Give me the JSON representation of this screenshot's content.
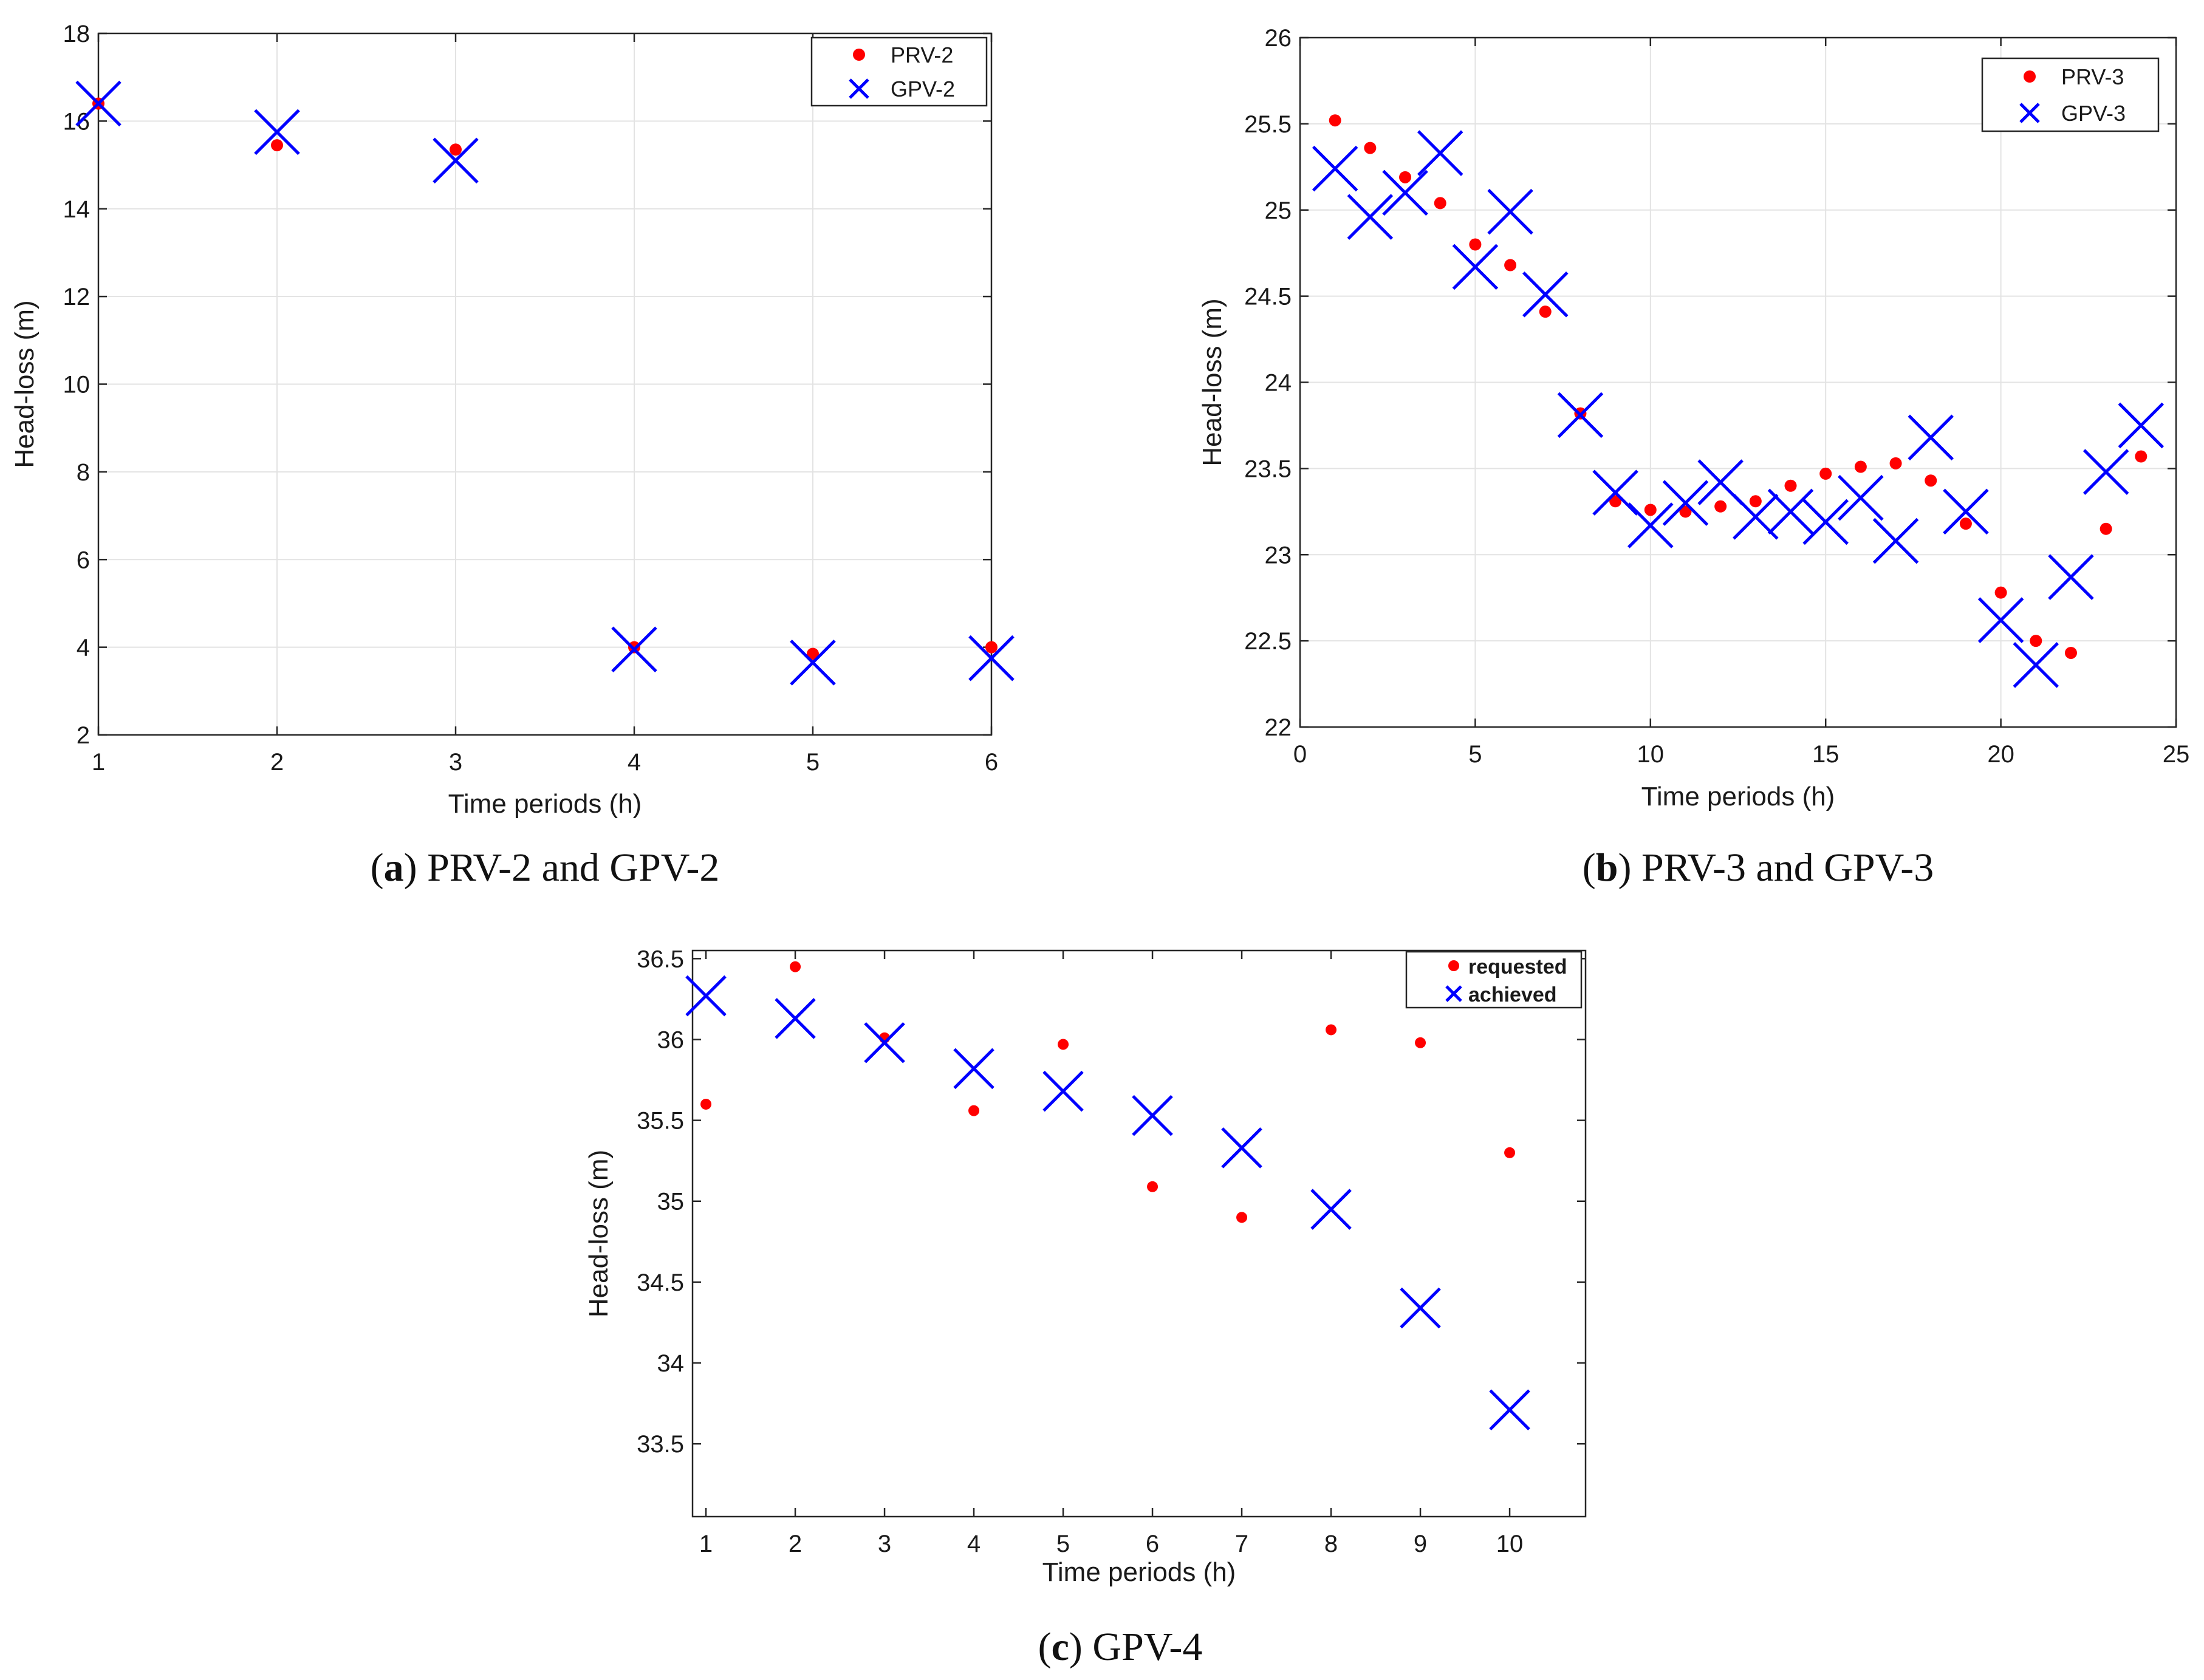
{
  "chart_data": [
    {
      "id": "a",
      "type": "scatter",
      "xlabel": "Time periods (h)",
      "ylabel": "Head-loss (m)",
      "xlim": [
        1,
        6
      ],
      "ylim": [
        2,
        18
      ],
      "xticks": [
        1,
        2,
        3,
        4,
        5,
        6
      ],
      "yticks": [
        2,
        4,
        6,
        8,
        10,
        12,
        14,
        16,
        18
      ],
      "grid": true,
      "legend_position": "top-right",
      "legend_style": "plain",
      "series": [
        {
          "name": "PRV-2",
          "marker": "dot",
          "color": "#ff0000",
          "x": [
            1,
            2,
            3,
            4,
            5,
            6
          ],
          "y": [
            16.4,
            15.45,
            15.35,
            4.0,
            3.85,
            4.0
          ]
        },
        {
          "name": "GPV-2",
          "marker": "cross",
          "color": "#0000ff",
          "x": [
            1,
            2,
            3,
            4,
            5,
            6
          ],
          "y": [
            16.4,
            15.75,
            15.1,
            3.95,
            3.65,
            3.75
          ]
        }
      ],
      "caption": {
        "letter": "a",
        "text": "PRV-2 and GPV-2"
      }
    },
    {
      "id": "b",
      "type": "scatter",
      "xlabel": "Time periods (h)",
      "ylabel": "Head-loss (m)",
      "xlim": [
        0,
        25
      ],
      "ylim": [
        22,
        26
      ],
      "xticks": [
        0,
        5,
        10,
        15,
        20,
        25
      ],
      "yticks": [
        22,
        22.5,
        23,
        23.5,
        24,
        24.5,
        25,
        25.5,
        26
      ],
      "grid": true,
      "legend_position": "top-right",
      "legend_style": "plain",
      "series": [
        {
          "name": "PRV-3",
          "marker": "dot",
          "color": "#ff0000",
          "x": [
            1,
            2,
            3,
            4,
            5,
            6,
            7,
            8,
            9,
            10,
            11,
            12,
            13,
            14,
            15,
            16,
            17,
            18,
            19,
            20,
            21,
            22,
            23,
            24
          ],
          "y": [
            25.52,
            25.36,
            25.19,
            25.04,
            24.8,
            24.68,
            24.41,
            23.82,
            23.31,
            23.26,
            23.25,
            23.28,
            23.31,
            23.4,
            23.47,
            23.51,
            23.53,
            23.43,
            23.18,
            22.78,
            22.5,
            22.43,
            23.15,
            23.57
          ]
        },
        {
          "name": "GPV-3",
          "marker": "cross",
          "color": "#0000ff",
          "x": [
            1,
            2,
            3,
            4,
            5,
            6,
            7,
            8,
            9,
            10,
            11,
            12,
            13,
            14,
            15,
            16,
            17,
            18,
            19,
            20,
            21,
            22,
            23,
            24
          ],
          "y": [
            25.24,
            24.96,
            25.1,
            25.33,
            24.67,
            24.99,
            24.51,
            23.81,
            23.36,
            23.17,
            23.3,
            23.42,
            23.22,
            23.25,
            23.19,
            23.33,
            23.08,
            23.68,
            23.25,
            22.62,
            22.36,
            22.87,
            23.48,
            23.75
          ]
        }
      ],
      "caption": {
        "letter": "b",
        "text": "PRV-3 and GPV-3"
      }
    },
    {
      "id": "c",
      "type": "scatter",
      "xlabel": "Time periods (h)",
      "ylabel": "Head-loss (m)",
      "xlim": [
        0.85,
        10.85
      ],
      "ylim": [
        33.05,
        36.55
      ],
      "xticks": [
        1,
        2,
        3,
        4,
        5,
        6,
        7,
        8,
        9,
        10
      ],
      "yticks": [
        33.5,
        34,
        34.5,
        35,
        35.5,
        36,
        36.5
      ],
      "grid": false,
      "legend_position": "top-right",
      "legend_style": "bold",
      "series": [
        {
          "name": "requested",
          "marker": "dot",
          "color": "#ff0000",
          "x": [
            1,
            2,
            3,
            4,
            5,
            6,
            7,
            8,
            9,
            10
          ],
          "y": [
            35.6,
            36.45,
            36.01,
            35.56,
            35.97,
            35.09,
            34.9,
            36.06,
            35.98,
            35.3
          ]
        },
        {
          "name": "achieved",
          "marker": "cross",
          "color": "#0000ff",
          "x": [
            1,
            2,
            3,
            4,
            5,
            6,
            7,
            8,
            9,
            10
          ],
          "y": [
            36.27,
            36.13,
            35.98,
            35.82,
            35.68,
            35.53,
            35.33,
            34.95,
            34.34,
            33.71
          ]
        }
      ],
      "caption": {
        "letter": "c",
        "text": "GPV-4"
      }
    }
  ]
}
